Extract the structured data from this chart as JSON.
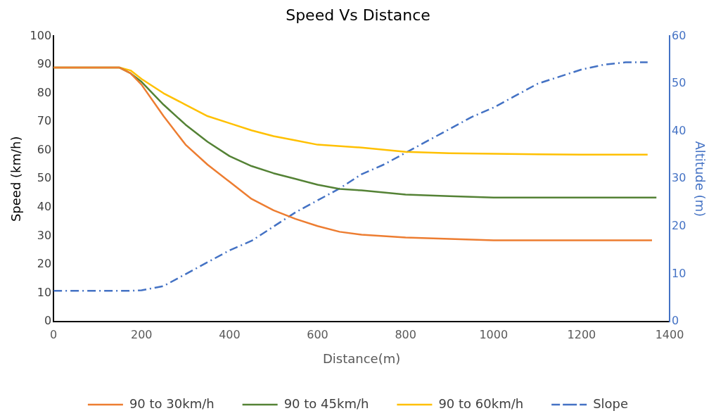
{
  "chart_data": {
    "type": "line",
    "title": "Speed Vs Distance",
    "xlabel": "Distance(m)",
    "ylabel": "Speed (km/h)",
    "y2label": "Altitude (m)",
    "xlim": [
      0,
      1400
    ],
    "xticks": [
      0,
      200,
      400,
      600,
      800,
      1000,
      1200,
      1400
    ],
    "ylim": [
      0,
      100
    ],
    "yticks": [
      0,
      10,
      20,
      30,
      40,
      50,
      60,
      70,
      80,
      90,
      100
    ],
    "y2lim": [
      0,
      60
    ],
    "y2ticks": [
      0,
      10,
      20,
      30,
      40,
      50,
      60
    ],
    "grid": false,
    "legend": "bottom",
    "marker": "none",
    "series": [
      {
        "name": "90 to 30km/h",
        "color": "#ed7d31",
        "line_style": "solid",
        "x": [
          0,
          150,
          175,
          200,
          250,
          300,
          350,
          400,
          450,
          500,
          550,
          600,
          650,
          700,
          750,
          800,
          900,
          1000,
          1360
        ],
        "values": [
          89,
          89,
          87,
          83,
          72,
          62,
          55,
          49,
          43,
          39,
          36,
          33.5,
          31.5,
          30.5,
          30,
          29.5,
          29,
          28.5,
          28.5
        ]
      },
      {
        "name": "90 to 45km/h",
        "color": "#548235",
        "line_style": "solid",
        "x": [
          0,
          150,
          175,
          200,
          250,
          300,
          350,
          400,
          450,
          500,
          550,
          600,
          650,
          700,
          800,
          900,
          1000,
          1370
        ],
        "values": [
          89,
          89,
          87,
          84,
          76,
          69,
          63,
          58,
          54.5,
          52,
          50,
          48,
          46.5,
          46,
          44.5,
          44,
          43.5,
          43.5
        ]
      },
      {
        "name": "90 to 60km/h",
        "color": "#ffc000",
        "line_style": "solid",
        "x": [
          0,
          150,
          175,
          200,
          250,
          300,
          350,
          400,
          450,
          500,
          550,
          600,
          700,
          800,
          900,
          1000,
          1200,
          1350
        ],
        "values": [
          89,
          89,
          88,
          85,
          80,
          76,
          72,
          69.5,
          67,
          65,
          63.5,
          62,
          61,
          59.5,
          59,
          58.8,
          58.5,
          58.5
        ]
      },
      {
        "name": "Slope",
        "color": "#4472c4",
        "line_style": "dashdot",
        "axis": "y2",
        "x": [
          0,
          170,
          200,
          250,
          300,
          350,
          400,
          450,
          500,
          550,
          600,
          650,
          700,
          750,
          800,
          850,
          900,
          950,
          1000,
          1050,
          1100,
          1150,
          1200,
          1250,
          1300,
          1350
        ],
        "values": [
          6.5,
          6.5,
          6.6,
          7.5,
          10,
          12.5,
          15,
          17,
          20,
          23,
          25.5,
          28,
          31,
          33,
          35.5,
          38,
          40.5,
          43,
          45,
          47.5,
          50,
          51.5,
          53,
          54,
          54.5,
          54.5
        ]
      }
    ]
  }
}
